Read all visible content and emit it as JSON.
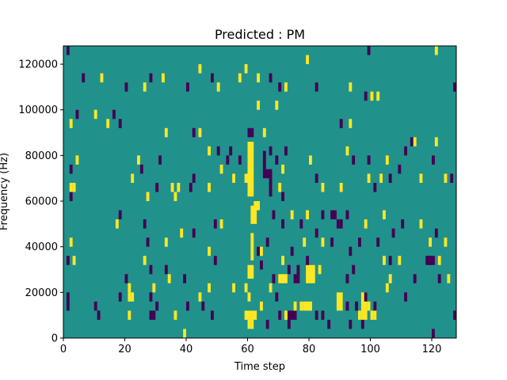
{
  "chart_data": {
    "type": "heatmap",
    "title": "Predicted : PM",
    "xlabel": "Time step",
    "ylabel": "Frequency (Hz)",
    "xlim": [
      0,
      128
    ],
    "ylim": [
      0,
      128000
    ],
    "x_ticks": [
      0,
      20,
      40,
      60,
      80,
      100,
      120
    ],
    "y_ticks": [
      0,
      20000,
      40000,
      60000,
      80000,
      100000,
      120000
    ],
    "x_tick_labels": [
      "0",
      "20",
      "40",
      "60",
      "80",
      "100",
      "120"
    ],
    "y_tick_labels": [
      "0",
      "20000",
      "40000",
      "60000",
      "80000",
      "100000",
      "120000"
    ],
    "colormap": "viridis",
    "background_value": 0,
    "background_color": "#21918c",
    "high_value": 1,
    "high_color": "#fde725",
    "low_value": -1,
    "low_color": "#440154",
    "cells": [
      {
        "t": 1,
        "f": 126000,
        "v": -1
      },
      {
        "t": 6,
        "f": 114000,
        "v": -1
      },
      {
        "t": 12,
        "f": 114000,
        "v": 1
      },
      {
        "t": 20,
        "f": 110000,
        "v": -1
      },
      {
        "t": 26,
        "f": 110000,
        "v": 1
      },
      {
        "t": 28,
        "f": 114000,
        "v": -1
      },
      {
        "t": 32,
        "f": 114000,
        "v": 1
      },
      {
        "t": 40,
        "f": 110000,
        "v": -1
      },
      {
        "t": 44,
        "f": 118000,
        "v": 1
      },
      {
        "t": 48,
        "f": 114000,
        "v": -1
      },
      {
        "t": 50,
        "f": 110000,
        "v": 1
      },
      {
        "t": 57,
        "f": 114000,
        "v": 1
      },
      {
        "t": 59,
        "f": 118000,
        "v": 1
      },
      {
        "t": 63,
        "f": 114000,
        "v": 1
      },
      {
        "t": 67,
        "f": 114000,
        "v": -1
      },
      {
        "t": 70,
        "f": 110000,
        "v": -1
      },
      {
        "t": 72,
        "f": 110000,
        "v": 1
      },
      {
        "t": 79,
        "f": 122000,
        "v": 1
      },
      {
        "t": 82,
        "f": 110000,
        "v": -1
      },
      {
        "t": 93,
        "f": 110000,
        "v": 1
      },
      {
        "t": 99,
        "f": 126000,
        "v": -1
      },
      {
        "t": 100,
        "f": 106000,
        "v": 1
      },
      {
        "t": 102,
        "f": 106000,
        "v": 1
      },
      {
        "t": 121,
        "f": 126000,
        "v": 1
      },
      {
        "t": 127,
        "f": 110000,
        "v": -1
      },
      {
        "t": 2,
        "f": 94000,
        "v": 1
      },
      {
        "t": 4,
        "f": 98000,
        "v": -1
      },
      {
        "t": 10,
        "f": 98000,
        "v": 1
      },
      {
        "t": 14,
        "f": 94000,
        "v": 1
      },
      {
        "t": 16,
        "f": 98000,
        "v": -1
      },
      {
        "t": 18,
        "f": 94000,
        "v": -1
      },
      {
        "t": 33,
        "f": 90000,
        "v": 1
      },
      {
        "t": 42,
        "f": 90000,
        "v": -1
      },
      {
        "t": 44,
        "f": 90000,
        "v": 1
      },
      {
        "t": 60,
        "f": 90000,
        "v": -1
      },
      {
        "t": 61,
        "f": 90000,
        "v": -1
      },
      {
        "t": 63,
        "f": 102000,
        "v": 1
      },
      {
        "t": 65,
        "f": 90000,
        "v": 1
      },
      {
        "t": 69,
        "f": 102000,
        "v": 1
      },
      {
        "t": 90,
        "f": 94000,
        "v": -1
      },
      {
        "t": 93,
        "f": 94000,
        "v": 1
      },
      {
        "t": 98,
        "f": 106000,
        "v": -1
      },
      {
        "t": 4,
        "f": 78000,
        "v": 1
      },
      {
        "t": 2,
        "f": 74000,
        "v": -1
      },
      {
        "t": 2,
        "f": 66000,
        "v": 1
      },
      {
        "t": 3,
        "f": 66000,
        "v": 1
      },
      {
        "t": 2,
        "f": 62000,
        "v": -1
      },
      {
        "t": 22,
        "f": 70000,
        "v": 1
      },
      {
        "t": 24,
        "f": 78000,
        "v": 1
      },
      {
        "t": 25,
        "f": 74000,
        "v": -1
      },
      {
        "t": 31,
        "f": 78000,
        "v": -1
      },
      {
        "t": 30,
        "f": 66000,
        "v": -1
      },
      {
        "t": 35,
        "f": 66000,
        "v": 1
      },
      {
        "t": 37,
        "f": 66000,
        "v": 1
      },
      {
        "t": 36,
        "f": 62000,
        "v": 1
      },
      {
        "t": 42,
        "f": 70000,
        "v": -1
      },
      {
        "t": 41,
        "f": 66000,
        "v": -1
      },
      {
        "t": 47,
        "f": 82000,
        "v": 1
      },
      {
        "t": 51,
        "f": 74000,
        "v": 1
      },
      {
        "t": 53,
        "f": 78000,
        "v": -1
      },
      {
        "t": 27,
        "f": 62000,
        "v": 1
      },
      {
        "t": 50,
        "f": 82000,
        "v": -1
      },
      {
        "t": 54,
        "f": 82000,
        "v": -1
      },
      {
        "t": 47,
        "f": 66000,
        "v": 1
      },
      {
        "t": 55,
        "f": 70000,
        "v": 1
      },
      {
        "t": 57,
        "f": 78000,
        "v": -1
      },
      {
        "t": 67,
        "f": 82000,
        "v": -1
      },
      {
        "t": 69,
        "f": 78000,
        "v": -1
      },
      {
        "t": 72,
        "f": 82000,
        "v": -1
      },
      {
        "t": 71,
        "f": 74000,
        "v": 1
      },
      {
        "t": 80,
        "f": 78000,
        "v": 1
      },
      {
        "t": 82,
        "f": 70000,
        "v": -1
      },
      {
        "t": 84,
        "f": 66000,
        "v": 1
      },
      {
        "t": 90,
        "f": 66000,
        "v": 1
      },
      {
        "t": 92,
        "f": 82000,
        "v": 1
      },
      {
        "t": 94,
        "f": 78000,
        "v": -1
      },
      {
        "t": 99,
        "f": 78000,
        "v": -1
      },
      {
        "t": 103,
        "f": 70000,
        "v": 1
      },
      {
        "t": 101,
        "f": 66000,
        "v": -1
      },
      {
        "t": 106,
        "f": 70000,
        "v": -1
      },
      {
        "t": 109,
        "f": 74000,
        "v": -1
      },
      {
        "t": 111,
        "f": 82000,
        "v": -1
      },
      {
        "t": 116,
        "f": 70000,
        "v": 1
      },
      {
        "t": 120,
        "f": 78000,
        "v": -1
      },
      {
        "t": 121,
        "f": 86000,
        "v": 1
      },
      {
        "t": 124,
        "f": 70000,
        "v": 1
      },
      {
        "t": 126,
        "f": 70000,
        "v": -1
      },
      {
        "t": 113,
        "f": 86000,
        "v": -1
      },
      {
        "t": 114,
        "f": 86000,
        "v": 1
      },
      {
        "t": 105,
        "f": 78000,
        "v": 1
      },
      {
        "t": 99,
        "f": 70000,
        "v": 1
      },
      {
        "t": 18,
        "f": 54000,
        "v": -1
      },
      {
        "t": 17,
        "f": 50000,
        "v": 1
      },
      {
        "t": 26,
        "f": 50000,
        "v": -1
      },
      {
        "t": 38,
        "f": 46000,
        "v": 1
      },
      {
        "t": 42,
        "f": 46000,
        "v": -1
      },
      {
        "t": 49,
        "f": 50000,
        "v": -1
      },
      {
        "t": 51,
        "f": 50000,
        "v": 1
      },
      {
        "t": 27,
        "f": 42000,
        "v": -1
      },
      {
        "t": 33,
        "f": 42000,
        "v": 1
      },
      {
        "t": 47,
        "f": 38000,
        "v": 1
      },
      {
        "t": 49,
        "f": 34000,
        "v": -1
      },
      {
        "t": 2,
        "f": 42000,
        "v": 1
      },
      {
        "t": 1,
        "f": 34000,
        "v": -1
      },
      {
        "t": 3,
        "f": 34000,
        "v": 1
      },
      {
        "t": 26,
        "f": 34000,
        "v": 1
      },
      {
        "t": 28,
        "f": 30000,
        "v": -1
      },
      {
        "t": 33,
        "f": 30000,
        "v": -1
      },
      {
        "t": 68,
        "f": 54000,
        "v": -1
      },
      {
        "t": 71,
        "f": 50000,
        "v": -1
      },
      {
        "t": 74,
        "f": 54000,
        "v": 1
      },
      {
        "t": 77,
        "f": 50000,
        "v": -1
      },
      {
        "t": 79,
        "f": 54000,
        "v": 1
      },
      {
        "t": 84,
        "f": 54000,
        "v": -1
      },
      {
        "t": 89,
        "f": 50000,
        "v": -1
      },
      {
        "t": 90,
        "f": 50000,
        "v": -1
      },
      {
        "t": 92,
        "f": 54000,
        "v": -1
      },
      {
        "t": 98,
        "f": 50000,
        "v": 1
      },
      {
        "t": 104,
        "f": 54000,
        "v": 1
      },
      {
        "t": 107,
        "f": 46000,
        "v": -1
      },
      {
        "t": 110,
        "f": 50000,
        "v": -1
      },
      {
        "t": 116,
        "f": 50000,
        "v": 1
      },
      {
        "t": 119,
        "f": 42000,
        "v": 1
      },
      {
        "t": 121,
        "f": 46000,
        "v": -1
      },
      {
        "t": 124,
        "f": 42000,
        "v": 1
      },
      {
        "t": 82,
        "f": 46000,
        "v": -1
      },
      {
        "t": 84,
        "f": 42000,
        "v": 1
      },
      {
        "t": 87,
        "f": 42000,
        "v": -1
      },
      {
        "t": 78,
        "f": 42000,
        "v": 1
      },
      {
        "t": 74,
        "f": 38000,
        "v": -1
      },
      {
        "t": 66,
        "f": 42000,
        "v": -1
      },
      {
        "t": 71,
        "f": 34000,
        "v": 1
      },
      {
        "t": 73,
        "f": 30000,
        "v": -1
      },
      {
        "t": 76,
        "f": 30000,
        "v": -1
      },
      {
        "t": 79,
        "f": 34000,
        "v": -1
      },
      {
        "t": 83,
        "f": 30000,
        "v": 1
      },
      {
        "t": 93,
        "f": 38000,
        "v": -1
      },
      {
        "t": 104,
        "f": 34000,
        "v": 1
      },
      {
        "t": 106,
        "f": 34000,
        "v": -1
      },
      {
        "t": 109,
        "f": 34000,
        "v": 1
      },
      {
        "t": 119,
        "f": 34000,
        "v": -1
      },
      {
        "t": 120,
        "f": 34000,
        "v": -1
      },
      {
        "t": 122,
        "f": 34000,
        "v": 1
      },
      {
        "t": 102,
        "f": 42000,
        "v": -1
      },
      {
        "t": 96,
        "f": 42000,
        "v": -1
      },
      {
        "t": 63,
        "f": 38000,
        "v": -1
      },
      {
        "t": 64,
        "f": 38000,
        "v": 1
      },
      {
        "t": 20,
        "f": 26000,
        "v": -1
      },
      {
        "t": 21,
        "f": 22000,
        "v": 1
      },
      {
        "t": 18,
        "f": 18000,
        "v": -1
      },
      {
        "t": 21,
        "f": 18000,
        "v": 1
      },
      {
        "t": 22,
        "f": 18000,
        "v": 1
      },
      {
        "t": 1,
        "f": 14000,
        "v": -1
      },
      {
        "t": 1,
        "f": 18000,
        "v": -1
      },
      {
        "t": 10,
        "f": 14000,
        "v": -1
      },
      {
        "t": 11,
        "f": 10000,
        "v": -1
      },
      {
        "t": 21,
        "f": 10000,
        "v": 1
      },
      {
        "t": 28,
        "f": 18000,
        "v": -1
      },
      {
        "t": 30,
        "f": 14000,
        "v": -1
      },
      {
        "t": 29,
        "f": 10000,
        "v": -1
      },
      {
        "t": 28,
        "f": 10000,
        "v": -1
      },
      {
        "t": 36,
        "f": 10000,
        "v": 1
      },
      {
        "t": 39,
        "f": 2000,
        "v": 1
      },
      {
        "t": 40,
        "f": 14000,
        "v": -1
      },
      {
        "t": 39,
        "f": 26000,
        "v": -1
      },
      {
        "t": 44,
        "f": 18000,
        "v": 1
      },
      {
        "t": 45,
        "f": 14000,
        "v": -1
      },
      {
        "t": 47,
        "f": 22000,
        "v": 1
      },
      {
        "t": 48,
        "f": 10000,
        "v": -1
      },
      {
        "t": 68,
        "f": 26000,
        "v": -1
      },
      {
        "t": 67,
        "f": 22000,
        "v": 1
      },
      {
        "t": 69,
        "f": 18000,
        "v": -1
      },
      {
        "t": 70,
        "f": 10000,
        "v": -1
      },
      {
        "t": 72,
        "f": 10000,
        "v": 1
      },
      {
        "t": 77,
        "f": 14000,
        "v": 1
      },
      {
        "t": 80,
        "f": 14000,
        "v": 1
      },
      {
        "t": 82,
        "f": 10000,
        "v": -1
      },
      {
        "t": 84,
        "f": 10000,
        "v": -1
      },
      {
        "t": 92,
        "f": 14000,
        "v": -1
      },
      {
        "t": 95,
        "f": 14000,
        "v": -1
      },
      {
        "t": 92,
        "f": 26000,
        "v": -1
      },
      {
        "t": 94,
        "f": 30000,
        "v": -1
      },
      {
        "t": 101,
        "f": 14000,
        "v": -1
      },
      {
        "t": 105,
        "f": 22000,
        "v": 1
      },
      {
        "t": 106,
        "f": 26000,
        "v": 1
      },
      {
        "t": 111,
        "f": 18000,
        "v": -1
      },
      {
        "t": 114,
        "f": 26000,
        "v": -1
      },
      {
        "t": 122,
        "f": 26000,
        "v": -1
      },
      {
        "t": 125,
        "f": 26000,
        "v": 1
      },
      {
        "t": 127,
        "f": 10000,
        "v": -1
      },
      {
        "t": 96,
        "f": 10000,
        "v": 1
      },
      {
        "t": 99,
        "f": 14000,
        "v": 1
      },
      {
        "t": 98,
        "f": 18000,
        "v": -1
      },
      {
        "t": 100,
        "f": 10000,
        "v": 1
      },
      {
        "t": 101,
        "f": 10000,
        "v": 1
      },
      {
        "t": 120,
        "f": 2000,
        "v": -1
      },
      {
        "t": 93,
        "f": 6000,
        "v": -1
      },
      {
        "t": 97,
        "f": 6000,
        "v": -1
      },
      {
        "t": 86,
        "f": 6000,
        "v": -1
      },
      {
        "t": 55,
        "f": 22000,
        "v": 1
      },
      {
        "t": 66,
        "f": 6000,
        "v": -1
      },
      {
        "t": 73,
        "f": 6000,
        "v": -1
      },
      {
        "t": 34,
        "f": 26000,
        "v": 1
      },
      {
        "t": 29,
        "f": 22000,
        "v": 1
      },
      {
        "t": 75,
        "f": 14000,
        "v": 1
      },
      {
        "t": 59,
        "f": 70000,
        "v": 1
      },
      {
        "t": 59,
        "f": 22000,
        "v": 1
      },
      {
        "t": 60,
        "f": 18000,
        "v": 1
      },
      {
        "t": 60,
        "f": 6000,
        "v": 1
      },
      {
        "t": 64,
        "f": 14000,
        "v": 1
      }
    ],
    "blocks": [
      {
        "t0": 60,
        "t1": 62,
        "f0": 62000,
        "f1": 86000,
        "v": 1
      },
      {
        "t0": 61,
        "t1": 63,
        "f0": 50000,
        "f1": 58000,
        "v": 1
      },
      {
        "t0": 61,
        "t1": 62,
        "f0": 34000,
        "f1": 46000,
        "v": 1
      },
      {
        "t0": 60,
        "t1": 62,
        "f0": 26000,
        "f1": 32000,
        "v": 1
      },
      {
        "t0": 59,
        "t1": 63,
        "f0": 8000,
        "f1": 12000,
        "v": 1
      },
      {
        "t0": 61,
        "t1": 62,
        "f0": 4000,
        "f1": 8000,
        "v": 1
      },
      {
        "t0": 65,
        "t1": 68,
        "f0": 70000,
        "f1": 74000,
        "v": -1
      },
      {
        "t0": 65,
        "t1": 66,
        "f0": 74000,
        "f1": 82000,
        "v": -1
      },
      {
        "t0": 67,
        "t1": 68,
        "f0": 62000,
        "f1": 70000,
        "v": -1
      },
      {
        "t0": 70,
        "t1": 71,
        "f0": 64000,
        "f1": 68000,
        "v": 1
      },
      {
        "t0": 73,
        "t1": 76,
        "f0": 8000,
        "f1": 12000,
        "v": -1
      },
      {
        "t0": 79,
        "t1": 82,
        "f0": 24000,
        "f1": 32000,
        "v": 1
      },
      {
        "t0": 70,
        "t1": 73,
        "f0": 24000,
        "f1": 28000,
        "v": 1
      },
      {
        "t0": 75,
        "t1": 77,
        "f0": 24000,
        "f1": 28000,
        "v": -1
      },
      {
        "t0": 87,
        "t1": 89,
        "f0": 52000,
        "f1": 56000,
        "v": -1
      },
      {
        "t0": 89,
        "t1": 91,
        "f0": 12000,
        "f1": 20000,
        "v": 1
      },
      {
        "t0": 97,
        "t1": 99,
        "f0": 8000,
        "f1": 20000,
        "v": 1
      },
      {
        "t0": 118,
        "t1": 120,
        "f0": 32000,
        "f1": 36000,
        "v": -1
      },
      {
        "t0": 71,
        "t1": 72,
        "f0": 60000,
        "f1": 64000,
        "v": -1
      },
      {
        "t0": 78,
        "t1": 81,
        "f0": 12000,
        "f1": 16000,
        "v": 1
      },
      {
        "t0": 62,
        "t1": 64,
        "f0": 56000,
        "f1": 60000,
        "v": 1
      },
      {
        "t0": 64,
        "t1": 65,
        "f0": 30000,
        "f1": 34000,
        "v": -1
      }
    ]
  }
}
